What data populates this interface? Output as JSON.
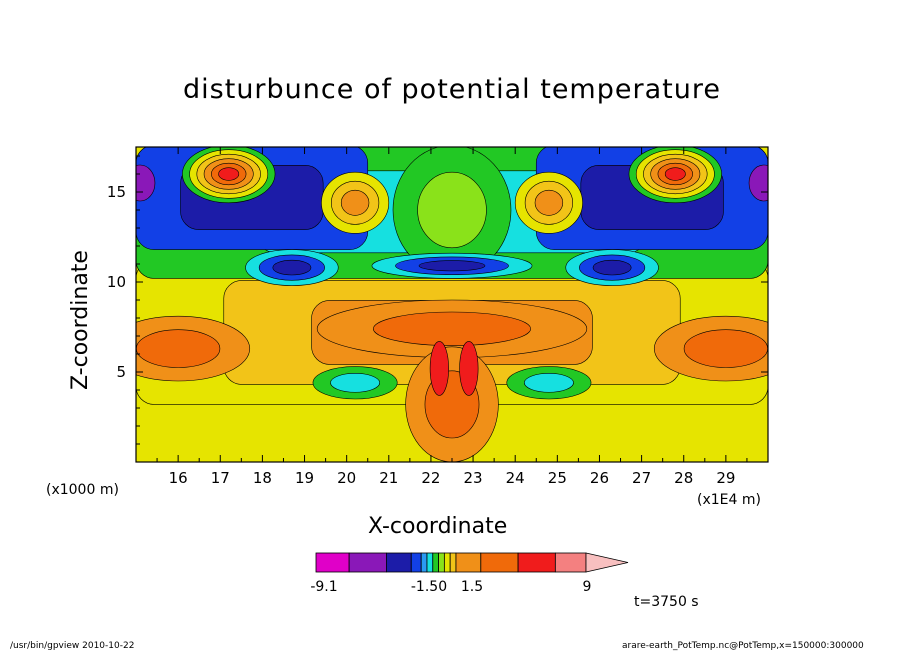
{
  "title": "disturbunce of potential temperature",
  "footer": {
    "left": "/usr/bin/gpview   2010-10-22",
    "right": "arare-earth_PotTemp.nc@PotTemp,x=150000:300000"
  },
  "time_label": "t=3750 s",
  "chart_data": {
    "type": "contour",
    "title": "disturbunce of potential temperature",
    "xlabel": "X-coordinate",
    "ylabel": "Z-coordinate",
    "x_unit_left": "(x1000 m)",
    "x_unit_right": "(x1E4 m)",
    "x_ticks": [
      "16",
      "17",
      "18",
      "19",
      "20",
      "21",
      "22",
      "23",
      "24",
      "25",
      "26",
      "27",
      "28",
      "29"
    ],
    "x_tick_values": [
      16,
      17,
      18,
      19,
      20,
      21,
      22,
      23,
      24,
      25,
      26,
      27,
      28,
      29
    ],
    "y_ticks": [
      "5",
      "10",
      "15"
    ],
    "y_tick_values": [
      5,
      10,
      15
    ],
    "xlim": [
      15,
      30
    ],
    "ylim": [
      0,
      17.5
    ],
    "colorbar": {
      "labels": [
        {
          "text": "-9.1",
          "value": -9.1
        },
        {
          "text": "-1.50",
          "value": -1.5
        },
        {
          "text": "1.5",
          "value": 1.5
        },
        {
          "text": "9",
          "value": 9
        }
      ],
      "colors": [
        "#e000c8",
        "#8a18b8",
        "#1c1ca8",
        "#1240e6",
        "#2a9af2",
        "#16e0e0",
        "#22c824",
        "#8ae21a",
        "#e6e400",
        "#f2c418",
        "#f09018",
        "#f06a0a",
        "#f01c1c",
        "#f48080",
        "#f8c0c0"
      ]
    },
    "regions": [
      {
        "name": "top-left warm cell",
        "x": 17.2,
        "z": 16.3,
        "rx": 0.7,
        "rz": 1.3,
        "level": "warm-max"
      },
      {
        "name": "top-right warm cell",
        "x": 27.8,
        "z": 16.3,
        "rx": 0.7,
        "rz": 1.3,
        "level": "warm-max"
      },
      {
        "name": "left cold band",
        "x": 16.3,
        "z": 14.2,
        "rx": 1.4,
        "rz": 1.6,
        "level": "cold"
      },
      {
        "name": "right cold band",
        "x": 28.7,
        "z": 14.2,
        "rx": 1.4,
        "rz": 1.6,
        "level": "cold"
      },
      {
        "name": "left lower cold cell",
        "x": 18.7,
        "z": 10.8,
        "rx": 0.9,
        "rz": 0.7,
        "level": "cold"
      },
      {
        "name": "right lower cold cell",
        "x": 26.3,
        "z": 10.8,
        "rx": 0.9,
        "rz": 0.7,
        "level": "cold"
      },
      {
        "name": "central cold bar",
        "x": 22.5,
        "z": 10.9,
        "rx": 1.6,
        "rz": 0.4,
        "level": "cold"
      },
      {
        "name": "central warm plume",
        "x": 22.5,
        "z": 3.5,
        "rx": 0.9,
        "rz": 3.0,
        "level": "warm"
      },
      {
        "name": "central warm core",
        "x": 22.5,
        "z": 5.2,
        "rx": 0.25,
        "rz": 1.6,
        "level": "warm-max"
      },
      {
        "name": "left low warm band",
        "x": 17.5,
        "z": 6.5,
        "rx": 2.5,
        "rz": 2.2,
        "level": "mild-warm"
      },
      {
        "name": "right low warm band",
        "x": 27.5,
        "z": 6.5,
        "rx": 2.5,
        "rz": 2.2,
        "level": "mild-warm"
      }
    ]
  }
}
